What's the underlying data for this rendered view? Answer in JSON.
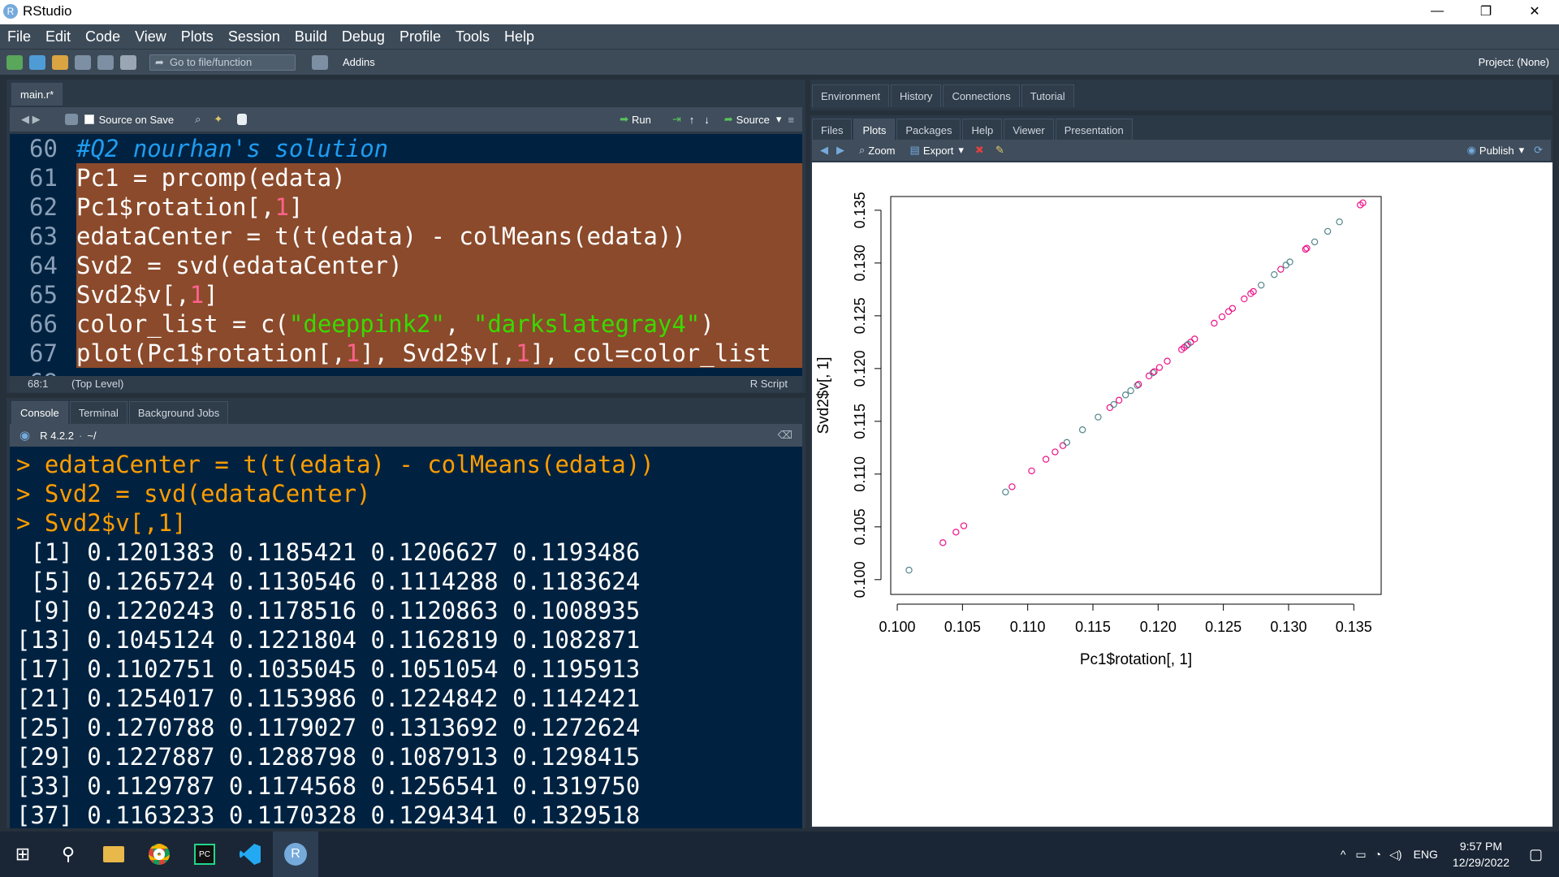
{
  "window": {
    "title": "RStudio",
    "minimize": "—",
    "maximize": "❐",
    "close": "✕"
  },
  "menu": [
    "File",
    "Edit",
    "Code",
    "View",
    "Plots",
    "Session",
    "Build",
    "Debug",
    "Profile",
    "Tools",
    "Help"
  ],
  "toolbar": {
    "goto_placeholder": "Go to file/function",
    "addins": "Addins",
    "project": "Project: (None)"
  },
  "editor": {
    "tab": "main.r*",
    "source_on_save": "Source on Save",
    "run": "Run",
    "source": "Source",
    "lines": [
      {
        "n": "60",
        "tokens": [
          {
            "t": "#Q2 nourhan's solution",
            "c": "cmt"
          }
        ],
        "sel": false
      },
      {
        "n": "61",
        "tokens": [
          {
            "t": "Pc1 = prcomp(edata)",
            "c": "plain"
          }
        ],
        "sel": true
      },
      {
        "n": "62",
        "tokens": [
          {
            "t": "Pc1$rotation[,",
            "c": "plain"
          },
          {
            "t": "1",
            "c": "num"
          },
          {
            "t": "]",
            "c": "plain"
          }
        ],
        "sel": true
      },
      {
        "n": "63",
        "tokens": [
          {
            "t": "edataCenter = t(t(edata) - colMeans(edata))",
            "c": "plain"
          }
        ],
        "sel": true
      },
      {
        "n": "64",
        "tokens": [
          {
            "t": "Svd2 = svd(edataCenter)",
            "c": "plain"
          }
        ],
        "sel": true
      },
      {
        "n": "65",
        "tokens": [
          {
            "t": "Svd2$v[,",
            "c": "plain"
          },
          {
            "t": "1",
            "c": "num"
          },
          {
            "t": "]",
            "c": "plain"
          }
        ],
        "sel": true
      },
      {
        "n": "66",
        "tokens": [
          {
            "t": "color_list = c(",
            "c": "plain"
          },
          {
            "t": "\"deeppink2\"",
            "c": "str"
          },
          {
            "t": ", ",
            "c": "plain"
          },
          {
            "t": "\"darkslategray4\"",
            "c": "str"
          },
          {
            "t": ")",
            "c": "plain"
          }
        ],
        "sel": true
      },
      {
        "n": "67",
        "tokens": [
          {
            "t": "plot(Pc1$rotation[,",
            "c": "plain"
          },
          {
            "t": "1",
            "c": "num"
          },
          {
            "t": "], Svd2$v[,",
            "c": "plain"
          },
          {
            "t": "1",
            "c": "num"
          },
          {
            "t": "], col=color_list",
            "c": "plain"
          }
        ],
        "sel": true
      },
      {
        "n": "68",
        "tokens": [],
        "sel": false
      }
    ],
    "status_pos": "68:1",
    "status_level": "(Top Level)",
    "status_type": "R Script"
  },
  "console": {
    "tabs": [
      "Console",
      "Terminal",
      "Background Jobs"
    ],
    "r_version": "R 4.2.2",
    "path": "~/",
    "lines": [
      {
        "p": "> ",
        "t": "edataCenter = t(t(edata) - colMeans(edata))",
        "k": "in"
      },
      {
        "p": "> ",
        "t": "Svd2 = svd(edataCenter)",
        "k": "in"
      },
      {
        "p": "> ",
        "t": "Svd2$v[,1]",
        "k": "in"
      },
      {
        "p": "",
        "t": " [1] 0.1201383 0.1185421 0.1206627 0.1193486",
        "k": "out"
      },
      {
        "p": "",
        "t": " [5] 0.1265724 0.1130546 0.1114288 0.1183624",
        "k": "out"
      },
      {
        "p": "",
        "t": " [9] 0.1220243 0.1178516 0.1120863 0.1008935",
        "k": "out"
      },
      {
        "p": "",
        "t": "[13] 0.1045124 0.1221804 0.1162819 0.1082871",
        "k": "out"
      },
      {
        "p": "",
        "t": "[17] 0.1102751 0.1035045 0.1051054 0.1195913",
        "k": "out"
      },
      {
        "p": "",
        "t": "[21] 0.1254017 0.1153986 0.1224842 0.1142421",
        "k": "out"
      },
      {
        "p": "",
        "t": "[25] 0.1270788 0.1179027 0.1313692 0.1272624",
        "k": "out"
      },
      {
        "p": "",
        "t": "[29] 0.1227887 0.1288798 0.1087913 0.1298415",
        "k": "out"
      },
      {
        "p": "",
        "t": "[33] 0.1129787 0.1174568 0.1256541 0.1319750",
        "k": "out"
      },
      {
        "p": "",
        "t": "[37] 0.1163233 0.1170328 0.1294341 0.1329518",
        "k": "out"
      }
    ]
  },
  "env_tabs": [
    "Environment",
    "History",
    "Connections",
    "Tutorial"
  ],
  "files_tabs": [
    "Files",
    "Plots",
    "Packages",
    "Help",
    "Viewer",
    "Presentation"
  ],
  "plot_toolbar": {
    "zoom": "Zoom",
    "export": "Export",
    "publish": "Publish"
  },
  "chart_data": {
    "type": "scatter",
    "xlabel": "Pc1$rotation[, 1]",
    "ylabel": "Svd2$v[, 1]",
    "xlim": [
      0.1,
      0.135
    ],
    "ylim": [
      0.1,
      0.135
    ],
    "xticks": [
      "0.100",
      "0.105",
      "0.110",
      "0.115",
      "0.120",
      "0.125",
      "0.130",
      "0.135"
    ],
    "yticks": [
      "0.100",
      "0.105",
      "0.110",
      "0.115",
      "0.120",
      "0.125",
      "0.130",
      "0.135"
    ],
    "colors": [
      "#EE1289",
      "#52868B"
    ],
    "points": [
      [
        0.1009,
        0.1009,
        1
      ],
      [
        0.1035,
        0.1035,
        0
      ],
      [
        0.1045,
        0.1045,
        0
      ],
      [
        0.1051,
        0.1051,
        0
      ],
      [
        0.1083,
        0.1083,
        1
      ],
      [
        0.1088,
        0.1088,
        0
      ],
      [
        0.1103,
        0.1103,
        0
      ],
      [
        0.1114,
        0.1114,
        0
      ],
      [
        0.1121,
        0.1121,
        0
      ],
      [
        0.1127,
        0.1127,
        0
      ],
      [
        0.113,
        0.113,
        1
      ],
      [
        0.1142,
        0.1142,
        1
      ],
      [
        0.1154,
        0.1154,
        1
      ],
      [
        0.1163,
        0.1163,
        0
      ],
      [
        0.117,
        0.117,
        0
      ],
      [
        0.1175,
        0.1175,
        1
      ],
      [
        0.1179,
        0.1179,
        1
      ],
      [
        0.1184,
        0.1184,
        1
      ],
      [
        0.1185,
        0.1185,
        0
      ],
      [
        0.1193,
        0.1193,
        0
      ],
      [
        0.1196,
        0.1196,
        1
      ],
      [
        0.1201,
        0.1201,
        0
      ],
      [
        0.1207,
        0.1207,
        0
      ],
      [
        0.1218,
        0.1218,
        0
      ],
      [
        0.122,
        0.122,
        0
      ],
      [
        0.1222,
        0.1222,
        0
      ],
      [
        0.1225,
        0.1225,
        0
      ],
      [
        0.1228,
        0.1228,
        0
      ],
      [
        0.1243,
        0.1243,
        0
      ],
      [
        0.1254,
        0.1254,
        0
      ],
      [
        0.1257,
        0.1257,
        0
      ],
      [
        0.1266,
        0.1266,
        0
      ],
      [
        0.1271,
        0.1271,
        0
      ],
      [
        0.1273,
        0.1273,
        0
      ],
      [
        0.1279,
        0.1279,
        1
      ],
      [
        0.1289,
        0.1289,
        1
      ],
      [
        0.1294,
        0.1294,
        0
      ],
      [
        0.1298,
        0.1298,
        1
      ],
      [
        0.1314,
        0.1314,
        0
      ],
      [
        0.132,
        0.132,
        1
      ],
      [
        0.133,
        0.133,
        1
      ],
      [
        0.1339,
        0.1339,
        1
      ],
      [
        0.1355,
        0.1355,
        0
      ],
      [
        0.1357,
        0.1357,
        0
      ],
      [
        0.1313,
        0.1313,
        0
      ],
      [
        0.1301,
        0.1301,
        1
      ],
      [
        0.1249,
        0.1249,
        0
      ],
      [
        0.1223,
        0.1223,
        1
      ],
      [
        0.1166,
        0.1166,
        1
      ],
      [
        0.1197,
        0.1197,
        0
      ]
    ]
  },
  "taskbar": {
    "time": "9:57 PM",
    "date": "12/29/2022",
    "lang": "ENG"
  }
}
